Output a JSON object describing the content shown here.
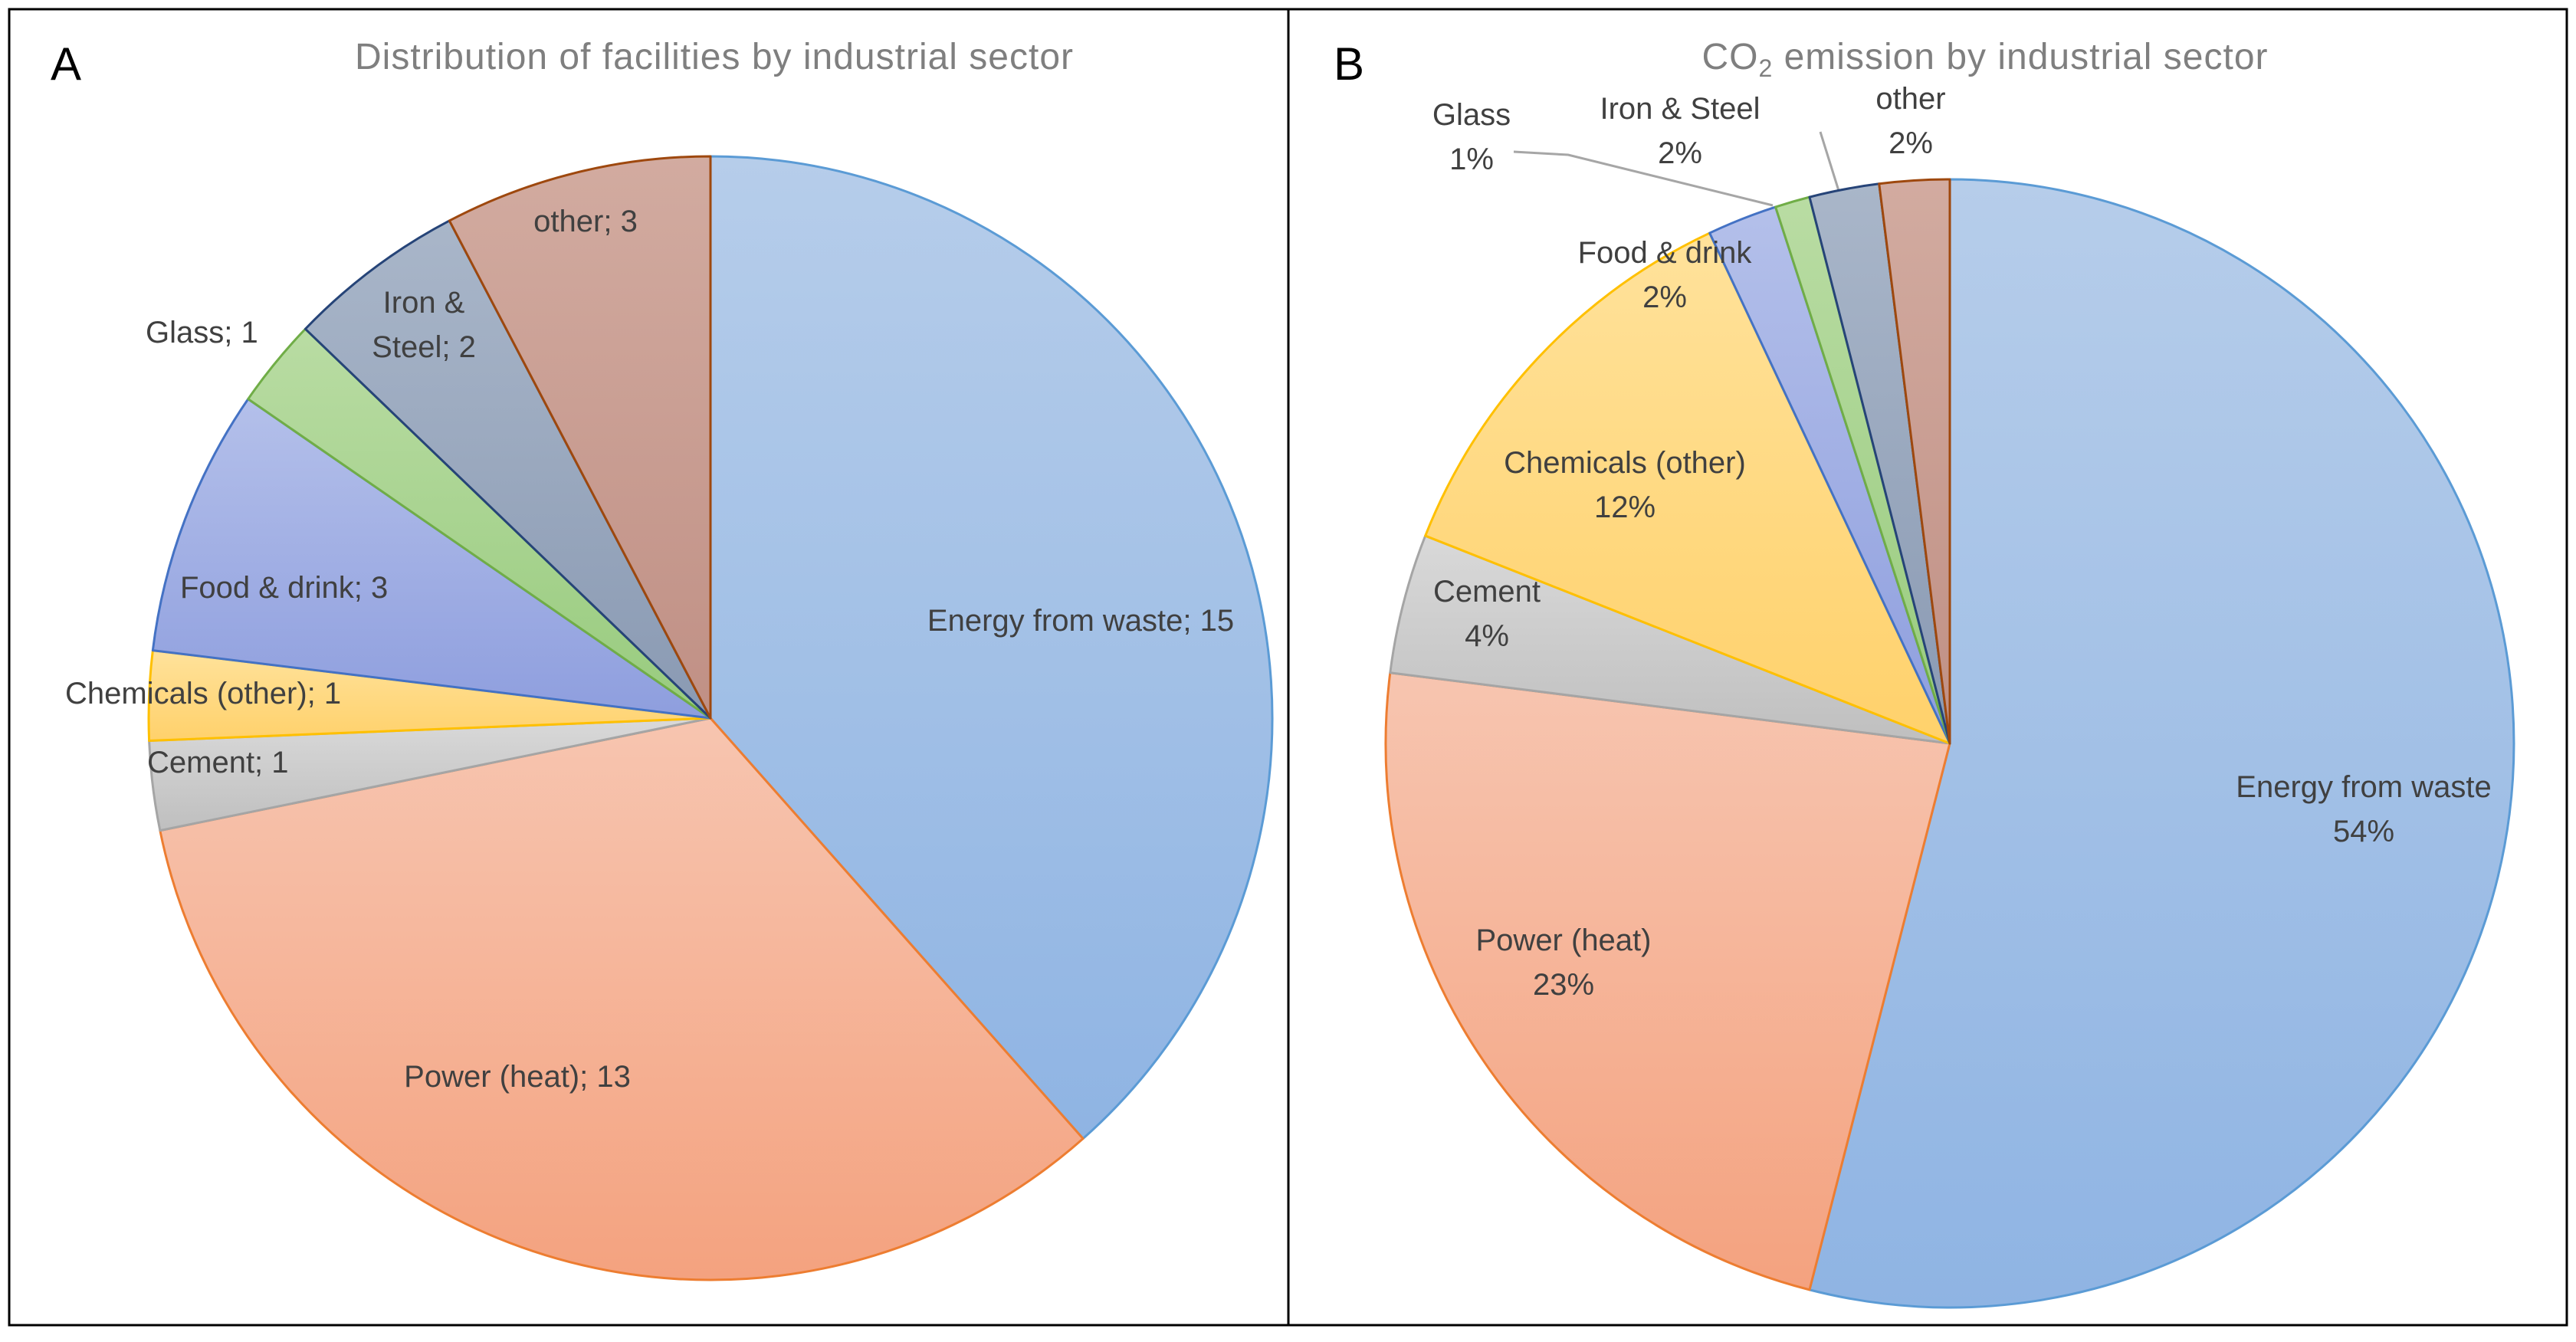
{
  "colors": {
    "Energy from waste": {
      "top": "#b6cdea",
      "bottom": "#8fb4e3",
      "stroke": "#5b9bd5"
    },
    "Power (heat)": {
      "top": "#f7c5b0",
      "bottom": "#f4a27f",
      "stroke": "#ed7d31"
    },
    "Cement": {
      "top": "#d9d9d9",
      "bottom": "#bfbfbf",
      "stroke": "#a5a5a5"
    },
    "Chemicals (other)": {
      "top": "#ffe29b",
      "bottom": "#ffd16b",
      "stroke": "#ffc000"
    },
    "Food & drink": {
      "top": "#b4c0ea",
      "bottom": "#8e9ede",
      "stroke": "#4472c4"
    },
    "Glass": {
      "top": "#b9dca3",
      "bottom": "#98cb7e",
      "stroke": "#70ad47"
    },
    "Iron & Steel": {
      "top": "#a9b6c9",
      "bottom": "#8a9ab3",
      "stroke": "#264478"
    },
    "other": {
      "top": "#d2aba0",
      "bottom": "#c09085",
      "stroke": "#9e480e"
    }
  },
  "chart_data": [
    {
      "type": "pie",
      "panel_label": "A",
      "title": "Distribution of facilities by industrial sector",
      "label_format": "name; value",
      "slices": [
        {
          "name": "Energy from waste",
          "value": 15,
          "label": [
            "Energy from waste; 15"
          ]
        },
        {
          "name": "Power (heat)",
          "value": 13,
          "label": [
            "Power (heat); 13"
          ]
        },
        {
          "name": "Cement",
          "value": 1,
          "label": [
            "Cement; 1"
          ]
        },
        {
          "name": "Chemicals (other)",
          "value": 1,
          "label": [
            "Chemicals (other); 1"
          ]
        },
        {
          "name": "Food & drink",
          "value": 3,
          "label": [
            "Food & drink; 3"
          ]
        },
        {
          "name": "Glass",
          "value": 1,
          "label": [
            "Glass; 1"
          ]
        },
        {
          "name": "Iron & Steel",
          "value": 2,
          "label": [
            "Iron &",
            "Steel; 2"
          ]
        },
        {
          "name": "other",
          "value": 3,
          "label": [
            "other; 3"
          ]
        }
      ]
    },
    {
      "type": "pie",
      "panel_label": "B",
      "title": "CO",
      "title_subscript": "2",
      "title_rest": " emission by industrial sector",
      "label_format": "name\\npercent",
      "slices": [
        {
          "name": "Energy from waste",
          "value": 54,
          "label": [
            "Energy from waste",
            "54%"
          ]
        },
        {
          "name": "Power (heat)",
          "value": 23,
          "label": [
            "Power (heat)",
            "23%"
          ]
        },
        {
          "name": "Cement",
          "value": 4,
          "label": [
            "Cement",
            "4%"
          ]
        },
        {
          "name": "Chemicals (other)",
          "value": 12,
          "label": [
            "Chemicals (other)",
            "12%"
          ]
        },
        {
          "name": "Food & drink",
          "value": 2,
          "label": [
            "Food & drink",
            "2%"
          ]
        },
        {
          "name": "Glass",
          "value": 1,
          "label": [
            "Glass",
            "1%"
          ]
        },
        {
          "name": "Iron & Steel",
          "value": 2,
          "label": [
            "Iron & Steel",
            "2%"
          ]
        },
        {
          "name": "other",
          "value": 2,
          "label": [
            "other",
            "2%"
          ]
        }
      ]
    }
  ]
}
